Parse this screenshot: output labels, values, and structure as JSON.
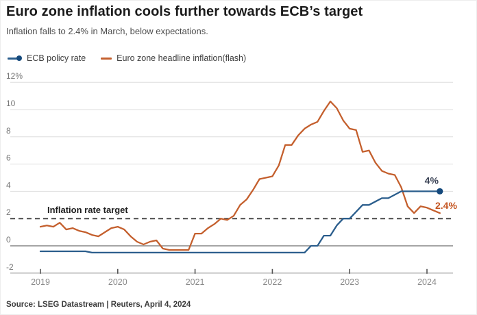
{
  "header": {
    "title": "Euro zone inflation cools further towards ECB’s target",
    "subtitle": "Inflation falls to 2.4% in March, below expectations."
  },
  "legend": [
    {
      "label": "ECB policy rate",
      "color": "#1f5c8f",
      "marker": "line-dot"
    },
    {
      "label": "Euro zone headline inflation(flash)",
      "color": "#c45f2d",
      "marker": "line"
    }
  ],
  "annotations": {
    "target_label": "Inflation rate target",
    "policy_end_label": "4%",
    "inflation_end_label": "2.4%"
  },
  "footer": {
    "source": "Source: LSEG Datastream | Reuters, April 4, 2024"
  },
  "colors": {
    "policy_line": "#2a5d8c",
    "policy_dot": "#14497c",
    "policy_label": "#3b4356",
    "inflation_line": "#c45f2d",
    "inflation_label": "#c4531e",
    "grid": "#dedede",
    "zero_line": "#6e6e6e",
    "target_dash": "#4a4a4a",
    "axis": "#9a9a9a",
    "tick": "#555555",
    "y_tick_text": "#767676",
    "x_tick_text": "#8a8a8a",
    "annotation_dark": "#1d1d1d"
  },
  "chart_data": {
    "type": "line",
    "title": "Euro zone inflation cools further towards ECB’s target",
    "subtitle": "Inflation falls to 2.4% in March, below expectations.",
    "x_start": "2019-01",
    "x_end": "2024-03",
    "ylim": [
      -2,
      12
    ],
    "grid": true,
    "legend_position": "top-left",
    "target_line_value": 2,
    "y_ticks": [
      {
        "v": 12,
        "label": "12%"
      },
      {
        "v": 10,
        "label": "10"
      },
      {
        "v": 8,
        "label": "8"
      },
      {
        "v": 6,
        "label": "6"
      },
      {
        "v": 4,
        "label": "4"
      },
      {
        "v": 2,
        "label": "2"
      },
      {
        "v": 0,
        "label": "0"
      },
      {
        "v": -2,
        "label": "-2"
      }
    ],
    "x_ticks": [
      {
        "m": 0,
        "label": "2019"
      },
      {
        "m": 12,
        "label": "2020"
      },
      {
        "m": 24,
        "label": "2021"
      },
      {
        "m": 36,
        "label": "2022"
      },
      {
        "m": 48,
        "label": "2023"
      },
      {
        "m": 60,
        "label": "2024"
      }
    ],
    "series": [
      {
        "name": "ECB policy rate",
        "color": "#2a5d8c",
        "end_label": "4%",
        "values": [
          -0.4,
          -0.4,
          -0.4,
          -0.4,
          -0.4,
          -0.4,
          -0.4,
          -0.4,
          -0.5,
          -0.5,
          -0.5,
          -0.5,
          -0.5,
          -0.5,
          -0.5,
          -0.5,
          -0.5,
          -0.5,
          -0.5,
          -0.5,
          -0.5,
          -0.5,
          -0.5,
          -0.5,
          -0.5,
          -0.5,
          -0.5,
          -0.5,
          -0.5,
          -0.5,
          -0.5,
          -0.5,
          -0.5,
          -0.5,
          -0.5,
          -0.5,
          -0.5,
          -0.5,
          -0.5,
          -0.5,
          -0.5,
          -0.5,
          0.0,
          0.0,
          0.75,
          0.75,
          1.5,
          2.0,
          2.0,
          2.5,
          3.0,
          3.0,
          3.25,
          3.5,
          3.5,
          3.75,
          4.0,
          4.0,
          4.0,
          4.0,
          4.0,
          4.0,
          4.0
        ]
      },
      {
        "name": "Euro zone headline inflation(flash)",
        "color": "#c45f2d",
        "end_label": "2.4%",
        "values": [
          1.4,
          1.5,
          1.4,
          1.7,
          1.2,
          1.3,
          1.1,
          1.0,
          0.8,
          0.7,
          1.0,
          1.3,
          1.4,
          1.2,
          0.7,
          0.3,
          0.1,
          0.3,
          0.4,
          -0.2,
          -0.3,
          -0.3,
          -0.3,
          -0.3,
          0.9,
          0.9,
          1.3,
          1.6,
          2.0,
          1.9,
          2.2,
          3.0,
          3.4,
          4.1,
          4.9,
          5.0,
          5.1,
          5.9,
          7.4,
          7.4,
          8.1,
          8.6,
          8.9,
          9.1,
          9.9,
          10.6,
          10.1,
          9.2,
          8.6,
          8.5,
          6.9,
          7.0,
          6.1,
          5.5,
          5.3,
          5.2,
          4.3,
          2.9,
          2.4,
          2.9,
          2.8,
          2.6,
          2.4
        ]
      }
    ]
  }
}
